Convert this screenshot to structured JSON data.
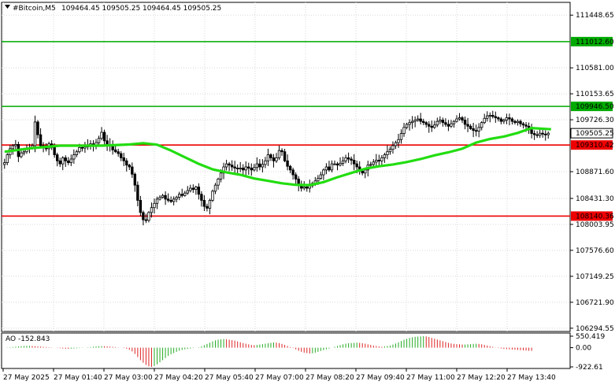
{
  "header": {
    "symbol": "#Bitcoin,M5",
    "ohlc": "109464.45 109505.25 109464.45 109505.25"
  },
  "chart_data": {
    "type": "candlestick",
    "symbol": "#Bitcoin",
    "timeframe": "M5",
    "price_ticks": [
      "111448.65",
      "111012.60",
      "110581.00",
      "110153.65",
      "109946.50",
      "109726.30",
      "109505.25",
      "109310.42",
      "108871.60",
      "108431.30",
      "108140.36",
      "108003.95",
      "107576.60",
      "107149.25",
      "106721.90",
      "106294.55"
    ],
    "price_ticks_plain": [
      "111448.65",
      "110581.00",
      "110153.65",
      "109726.30",
      "108871.60",
      "108431.30",
      "108003.95",
      "107576.60",
      "107149.25",
      "106721.90",
      "106294.55"
    ],
    "ylim": [
      106280,
      111620
    ],
    "time_labels": [
      "27 May 2025",
      "27 May 01:40",
      "27 May 03:00",
      "27 May 04:20",
      "27 May 05:40",
      "27 May 07:00",
      "27 May 08:20",
      "27 May 09:40",
      "27 May 11:00",
      "27 May 12:20",
      "27 May 13:40"
    ],
    "current_price": "109505.25",
    "levels": [
      {
        "label": "111012.60",
        "value": 111012.6,
        "color": "#00aa00"
      },
      {
        "label": "109946.50",
        "value": 109946.5,
        "color": "#00aa00"
      },
      {
        "label": "109310.42",
        "value": 109310.42,
        "color": "#ee0000"
      },
      {
        "label": "108140.36",
        "value": 108140.36,
        "color": "#ee0000"
      }
    ],
    "moving_average": {
      "color": "#22dd11",
      "x": [
        0,
        10,
        20,
        30,
        35,
        45,
        50,
        55,
        60,
        65,
        70,
        75,
        80,
        85,
        90,
        95,
        100,
        105,
        110,
        115,
        120,
        125,
        130,
        135,
        140,
        145,
        150,
        155,
        160,
        165,
        170,
        175,
        180,
        185,
        190,
        197
      ],
      "y": [
        109200,
        109260,
        109300,
        109300,
        109300,
        109320,
        109340,
        109315,
        109220,
        109110,
        109000,
        108910,
        108860,
        108820,
        108760,
        108720,
        108680,
        108655,
        108650,
        108700,
        108780,
        108850,
        108920,
        108960,
        108990,
        109030,
        109080,
        109140,
        109190,
        109250,
        109350,
        109410,
        109450,
        109510,
        109590,
        109570
      ]
    },
    "candles": {
      "x_count": 197,
      "close": [
        109020,
        109150,
        109250,
        109300,
        109320,
        109120,
        109180,
        109200,
        109240,
        109260,
        109300,
        109690,
        109480,
        109300,
        109260,
        109250,
        109330,
        109270,
        109150,
        109050,
        109000,
        109100,
        109050,
        109020,
        109080,
        109150,
        109200,
        109270,
        109260,
        109280,
        109300,
        109330,
        109300,
        109350,
        109420,
        109520,
        109380,
        109320,
        109300,
        109230,
        109200,
        109170,
        109100,
        109050,
        108980,
        108950,
        108830,
        108650,
        108400,
        108200,
        108080,
        108070,
        108200,
        108280,
        108350,
        108420,
        108450,
        108480,
        108420,
        108400,
        108380,
        108420,
        108450,
        108500,
        108480,
        108520,
        108560,
        108600,
        108580,
        108620,
        108500,
        108400,
        108300,
        108270,
        108400,
        108550,
        108650,
        108750,
        108850,
        108950,
        109000,
        108980,
        108950,
        108930,
        108920,
        108930,
        108900,
        108950,
        108930,
        108900,
        108940,
        109000,
        108950,
        108990,
        109050,
        109150,
        109100,
        109050,
        109100,
        109220,
        109200,
        109050,
        108960,
        108900,
        108820,
        108750,
        108650,
        108600,
        108620,
        108600,
        108640,
        108680,
        108720,
        108760,
        108820,
        108900,
        108950,
        108900,
        109000,
        109000,
        108980,
        109010,
        109050,
        109100,
        109080,
        109060,
        109000,
        108950,
        108880,
        108850,
        108900,
        108980,
        108990,
        109030,
        109060,
        109050,
        109100,
        109150,
        109200,
        109240,
        109300,
        109350,
        109400,
        109500,
        109600,
        109650,
        109680,
        109700,
        109720,
        109740,
        109700,
        109680,
        109650,
        109620,
        109600,
        109640,
        109700,
        109720,
        109680,
        109650,
        109620,
        109660,
        109700,
        109740,
        109760,
        109720,
        109650,
        109620,
        109580,
        109550,
        109540,
        109600,
        109680,
        109750,
        109790,
        109800,
        109780,
        109760,
        109740,
        109700,
        109720,
        109760,
        109740,
        109700,
        109680,
        109700,
        109660,
        109640,
        109620,
        109560,
        109500,
        109480,
        109470,
        109505,
        109490,
        109480,
        109505
      ]
    },
    "ao": {
      "label": "AO -152.843",
      "ticks": [
        "550.419",
        "0.00",
        "-922.61"
      ],
      "values": [
        0,
        10,
        20,
        30,
        45,
        60,
        70,
        80,
        85,
        85,
        80,
        70,
        60,
        50,
        40,
        30,
        20,
        10,
        0,
        -10,
        -25,
        -40,
        -50,
        -55,
        -50,
        -40,
        -30,
        -20,
        -10,
        0,
        15,
        30,
        45,
        60,
        70,
        75,
        70,
        60,
        50,
        40,
        25,
        10,
        -5,
        -20,
        -50,
        -100,
        -180,
        -300,
        -450,
        -600,
        -720,
        -830,
        -900,
        -920,
        -880,
        -800,
        -700,
        -600,
        -500,
        -400,
        -320,
        -260,
        -200,
        -150,
        -110,
        -80,
        -60,
        -40,
        -20,
        0,
        20,
        60,
        120,
        180,
        240,
        300,
        350,
        380,
        400,
        410,
        400,
        380,
        360,
        340,
        300,
        260,
        220,
        190,
        160,
        130,
        120,
        130,
        150,
        170,
        190,
        210,
        230,
        250,
        240,
        220,
        180,
        130,
        80,
        30,
        -20,
        -80,
        -150,
        -200,
        -240,
        -260,
        -280,
        -270,
        -240,
        -200,
        -160,
        -120,
        -80,
        -40,
        0,
        40,
        80,
        120,
        160,
        190,
        210,
        220,
        230,
        240,
        230,
        210,
        190,
        160,
        130,
        100,
        80,
        60,
        40,
        60,
        80,
        100,
        150,
        200,
        260,
        320,
        380,
        430,
        470,
        500,
        520,
        530,
        540,
        550,
        540,
        510,
        470,
        430,
        390,
        350,
        310,
        270,
        230,
        200,
        180,
        170,
        160,
        150,
        150,
        160,
        170,
        180,
        190,
        180,
        160,
        130,
        100,
        70,
        40,
        10,
        -20,
        -40,
        -60,
        -70,
        -80,
        -90,
        -100,
        -110,
        -120,
        -130,
        -140,
        -148,
        -152
      ]
    }
  }
}
